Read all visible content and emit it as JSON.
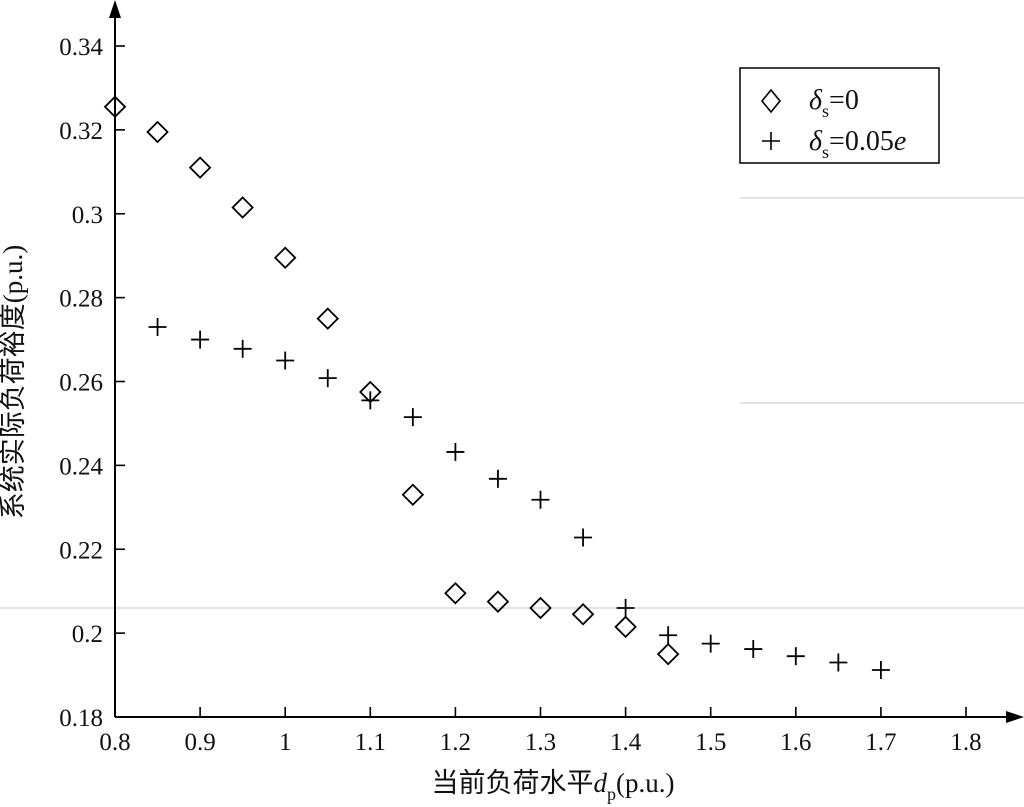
{
  "chart_data": {
    "type": "scatter",
    "title": "",
    "xlabel": {
      "main": "当前负荷水平",
      "symbol": "d",
      "subscript": "p",
      "unit": "(p.u.)"
    },
    "ylabel": "系统实际负荷裕度(p.u.)",
    "xlim": [
      0.8,
      1.8
    ],
    "ylim": [
      0.18,
      0.34
    ],
    "x_ticks": [
      "0.8",
      "0.9",
      "1",
      "1.1",
      "1.2",
      "1.3",
      "1.4",
      "1.5",
      "1.6",
      "1.7",
      "1.8"
    ],
    "y_ticks": [
      "0.18",
      "0.2",
      "0.22",
      "0.24",
      "0.26",
      "0.28",
      "0.3",
      "0.32",
      "0.34"
    ],
    "grid": false,
    "legend_position": "top-right",
    "series": [
      {
        "legend": {
          "symbol": "δ",
          "subscript": "s",
          "suffix": "=0"
        },
        "marker": "diamond",
        "points": [
          {
            "x": 0.8,
            "y": 0.3255
          },
          {
            "x": 0.85,
            "y": 0.3195
          },
          {
            "x": 0.9,
            "y": 0.311
          },
          {
            "x": 0.95,
            "y": 0.3015
          },
          {
            "x": 1.0,
            "y": 0.2895
          },
          {
            "x": 1.05,
            "y": 0.275
          },
          {
            "x": 1.1,
            "y": 0.2575
          },
          {
            "x": 1.15,
            "y": 0.233
          },
          {
            "x": 1.2,
            "y": 0.2095
          },
          {
            "x": 1.25,
            "y": 0.2075
          },
          {
            "x": 1.3,
            "y": 0.206
          },
          {
            "x": 1.35,
            "y": 0.2045
          },
          {
            "x": 1.4,
            "y": 0.2015
          },
          {
            "x": 1.45,
            "y": 0.195
          }
        ]
      },
      {
        "legend": {
          "symbol": "δ",
          "subscript": "s",
          "suffix": "=0.05",
          "tail": "e"
        },
        "marker": "plus",
        "points": [
          {
            "x": 0.85,
            "y": 0.273
          },
          {
            "x": 0.9,
            "y": 0.27
          },
          {
            "x": 0.95,
            "y": 0.2678
          },
          {
            "x": 1.0,
            "y": 0.265
          },
          {
            "x": 1.05,
            "y": 0.2608
          },
          {
            "x": 1.1,
            "y": 0.2555
          },
          {
            "x": 1.15,
            "y": 0.2515
          },
          {
            "x": 1.2,
            "y": 0.2432
          },
          {
            "x": 1.25,
            "y": 0.2368
          },
          {
            "x": 1.3,
            "y": 0.2318
          },
          {
            "x": 1.35,
            "y": 0.2228
          },
          {
            "x": 1.4,
            "y": 0.206
          },
          {
            "x": 1.45,
            "y": 0.1995
          },
          {
            "x": 1.5,
            "y": 0.1975
          },
          {
            "x": 1.55,
            "y": 0.1962
          },
          {
            "x": 1.6,
            "y": 0.1945
          },
          {
            "x": 1.65,
            "y": 0.193
          },
          {
            "x": 1.7,
            "y": 0.1912
          }
        ]
      }
    ]
  }
}
